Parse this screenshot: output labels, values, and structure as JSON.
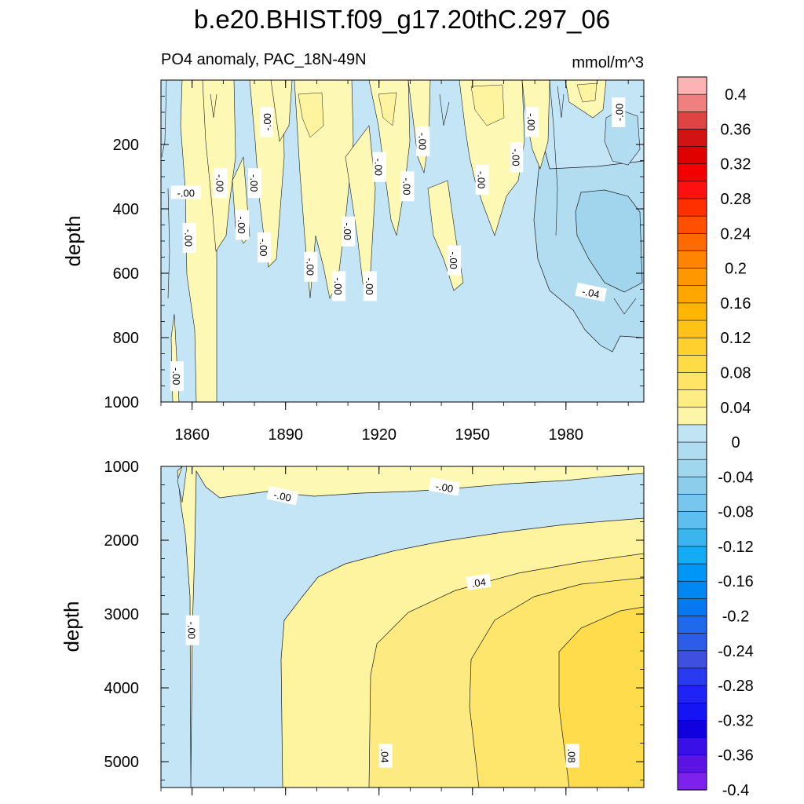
{
  "chart_data": {
    "type": "contour",
    "title": "b.e20.BHIST.f09_g17.20thC.297_06",
    "variable_label": "PO4 anomaly, PAC_18N-49N",
    "units": "mmol/m^3",
    "panels": [
      {
        "name": "upper",
        "ylabel": "depth",
        "ylim": [
          0,
          1000
        ],
        "y_inverted": true,
        "yticks": [
          "200",
          "400",
          "600",
          "800",
          "1000"
        ],
        "ytick_values": [
          200,
          400,
          600,
          800,
          1000
        ],
        "xlim": [
          1850,
          2005
        ],
        "xticks": [
          "1860",
          "1890",
          "1920",
          "1950",
          "1980"
        ],
        "xtick_values": [
          1860,
          1890,
          1920,
          1950,
          1980
        ],
        "contour_labels": [
          {
            "text": "-.00",
            "x": 1858,
            "y": 350,
            "angle": 0
          },
          {
            "text": "-.00",
            "x": 1859,
            "y": 490,
            "angle": 90
          },
          {
            "text": "-.00",
            "x": 1869,
            "y": 320,
            "angle": 90
          },
          {
            "text": "-.00",
            "x": 1876,
            "y": 450,
            "angle": 90
          },
          {
            "text": "-.00",
            "x": 1880,
            "y": 320,
            "angle": 90
          },
          {
            "text": "-.00",
            "x": 1884,
            "y": 130,
            "angle": 270
          },
          {
            "text": "-.00",
            "x": 1883,
            "y": 520,
            "angle": 90
          },
          {
            "text": "-.00",
            "x": 1898,
            "y": 580,
            "angle": 90
          },
          {
            "text": "-.00",
            "x": 1907,
            "y": 640,
            "angle": 90
          },
          {
            "text": "-.00",
            "x": 1910,
            "y": 470,
            "angle": 90
          },
          {
            "text": "-.00",
            "x": 1917,
            "y": 640,
            "angle": 90
          },
          {
            "text": "-.00",
            "x": 1920,
            "y": 270,
            "angle": 90
          },
          {
            "text": "-.00",
            "x": 1929,
            "y": 330,
            "angle": 90
          },
          {
            "text": "-.00",
            "x": 1934,
            "y": 190,
            "angle": 90
          },
          {
            "text": "-.00",
            "x": 1944,
            "y": 560,
            "angle": 90
          },
          {
            "text": "-.00",
            "x": 1953,
            "y": 310,
            "angle": 90
          },
          {
            "text": "-.00",
            "x": 1964,
            "y": 240,
            "angle": 90
          },
          {
            "text": "-.00",
            "x": 1969,
            "y": 130,
            "angle": 90
          },
          {
            "text": "-.04",
            "x": 1988,
            "y": 660,
            "angle": 12
          },
          {
            "text": "-.00",
            "x": 1997,
            "y": 100,
            "angle": 270
          },
          {
            "text": "-.00",
            "x": 1855,
            "y": 920,
            "angle": 90
          }
        ]
      },
      {
        "name": "lower",
        "ylabel": "depth",
        "ylim": [
          1000,
          5350
        ],
        "y_inverted": true,
        "yticks": [
          "1000",
          "2000",
          "3000",
          "4000",
          "5000"
        ],
        "ytick_values": [
          1000,
          2000,
          3000,
          4000,
          5000
        ],
        "xlim": [
          1850,
          2005
        ],
        "contour_labels": [
          {
            "text": "-.00",
            "x": 1889,
            "y": 1400,
            "angle": 12
          },
          {
            "text": "-.00",
            "x": 1941,
            "y": 1280,
            "angle": 10
          },
          {
            "text": ".04",
            "x": 1952,
            "y": 2570,
            "angle": -8
          },
          {
            "text": "-.00",
            "x": 1860,
            "y": 3220,
            "angle": 90
          },
          {
            "text": ".04",
            "x": 1922,
            "y": 4920,
            "angle": 90
          },
          {
            "text": ".08",
            "x": 1982,
            "y": 4920,
            "angle": 90
          }
        ]
      }
    ],
    "colorbar": {
      "levels": [
        "0.4",
        "0.36",
        "0.32",
        "0.28",
        "0.24",
        "0.2",
        "0.16",
        "0.12",
        "0.08",
        "0.04",
        "0",
        "-0.04",
        "-0.08",
        "-0.12",
        "-0.16",
        "-0.2",
        "-0.24",
        "-0.28",
        "-0.32",
        "-0.36",
        "-0.4"
      ],
      "colors": [
        "#fdb2b3",
        "#f08080",
        "#e04343",
        "#d11313",
        "#e00000",
        "#f20000",
        "#ff1010",
        "#ff3000",
        "#ff5000",
        "#ff6a00",
        "#ff8500",
        "#ff9700",
        "#ffa600",
        "#ffb600",
        "#ffc317",
        "#ffd02e",
        "#ffdc45",
        "#ffe466",
        "#fded83",
        "#fdf5a8",
        "#c1e4f4",
        "#b0dcf0",
        "#a0d6ee",
        "#8ccdec",
        "#76c6ee",
        "#5fbef0",
        "#3cb4f0",
        "#13aaf6",
        "#0096f5",
        "#0087f1",
        "#0878f0",
        "#1e6aed",
        "#2d5ce8",
        "#3f50e0",
        "#2a3af0",
        "#1f23f5",
        "#1414f5",
        "#1000e0",
        "#3a10e8",
        "#5c14e6",
        "#7c22ec"
      ]
    },
    "fill_colors": {
      "neg_light": "#c4e5f6",
      "neg_mid": "#b2ddf1",
      "neg_dark": "#a1d5ee",
      "pos_1": "#fdf9b4",
      "pos_2": "#fef39e",
      "pos_3": "#fdeb82",
      "pos_4": "#fee56c",
      "pos_5": "#fedc4c",
      "pos_6": "#fdd22f"
    }
  }
}
